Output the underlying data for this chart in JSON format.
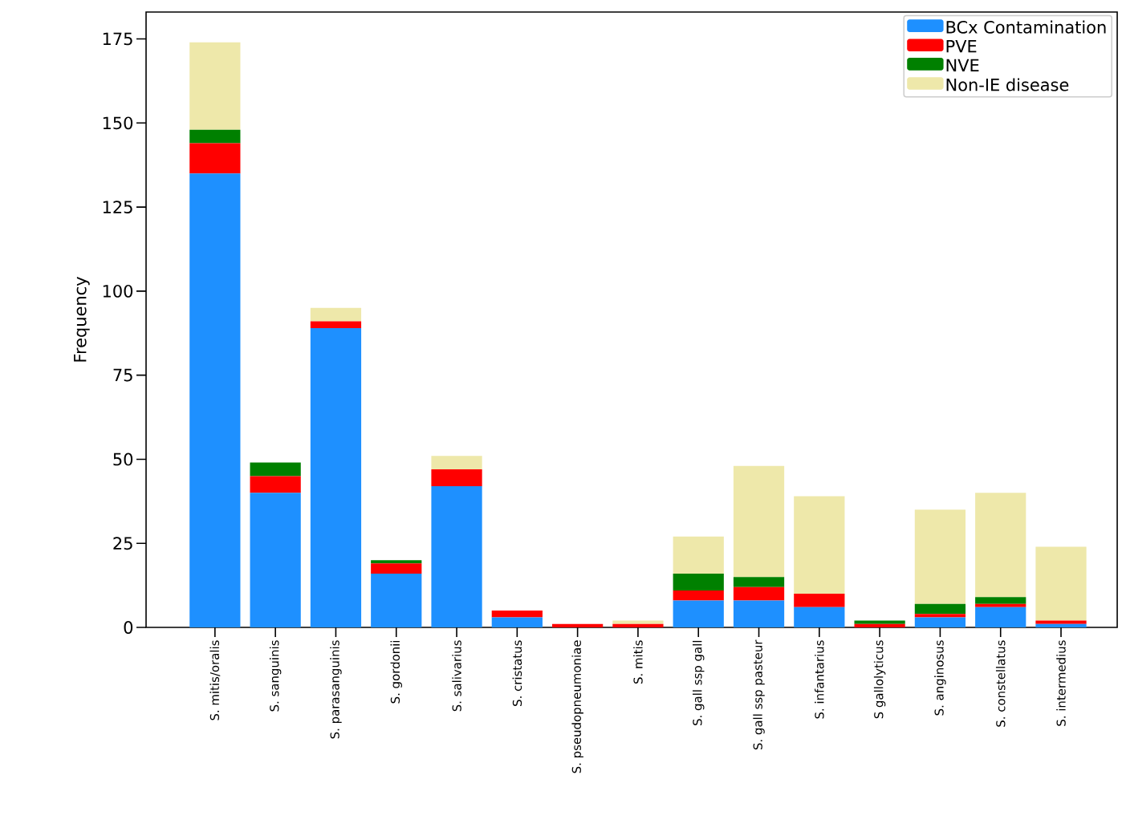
{
  "chart_data": {
    "type": "bar",
    "stacked": true,
    "ylabel": "Frequency",
    "categories": [
      "S. mitis/oralis",
      "S. sanguinis",
      "S. parasanguinis",
      "S. gordonii",
      "S. salivarius",
      "S. cristatus",
      "S. pseudopneumoniae",
      "S. mitis",
      "S. gall ssp gall",
      "S. gall ssp pasteur",
      "S. infantarius",
      "S gallolyticus",
      "S. anginosus",
      "S. constellatus",
      "S. intermedius"
    ],
    "series": [
      {
        "name": "BCx Contamination",
        "color": "#1e90ff",
        "values": [
          135,
          40,
          89,
          16,
          42,
          3,
          0,
          0,
          8,
          8,
          6,
          0,
          3,
          6,
          1
        ]
      },
      {
        "name": "PVE",
        "color": "#ff0000",
        "values": [
          9,
          5,
          2,
          3,
          5,
          2,
          1,
          1,
          3,
          4,
          4,
          1,
          1,
          1,
          1
        ]
      },
      {
        "name": "NVE",
        "color": "#008000",
        "values": [
          4,
          4,
          0,
          1,
          0,
          0,
          0,
          0,
          5,
          3,
          0,
          1,
          3,
          2,
          0
        ]
      },
      {
        "name": "Non-IE disease",
        "color": "#eee8aa",
        "values": [
          26,
          0,
          4,
          0,
          4,
          0,
          0,
          1,
          11,
          33,
          29,
          0,
          28,
          31,
          22
        ]
      }
    ],
    "ylim": [
      0,
      183
    ],
    "yticks": [
      0,
      25,
      50,
      75,
      100,
      125,
      150,
      175
    ],
    "grid": false,
    "legend": "top right"
  }
}
